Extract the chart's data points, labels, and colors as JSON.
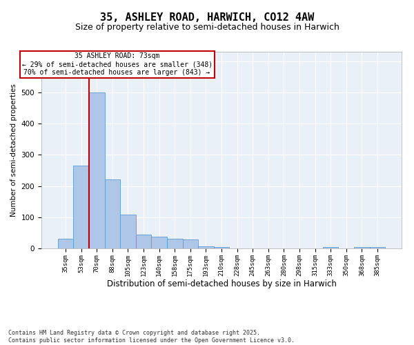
{
  "title": "35, ASHLEY ROAD, HARWICH, CO12 4AW",
  "subtitle": "Size of property relative to semi-detached houses in Harwich",
  "xlabel": "Distribution of semi-detached houses by size in Harwich",
  "ylabel": "Number of semi-detached properties",
  "categories": [
    "35sqm",
    "53sqm",
    "70sqm",
    "88sqm",
    "105sqm",
    "123sqm",
    "140sqm",
    "158sqm",
    "175sqm",
    "193sqm",
    "210sqm",
    "228sqm",
    "245sqm",
    "263sqm",
    "280sqm",
    "298sqm",
    "315sqm",
    "333sqm",
    "350sqm",
    "368sqm",
    "385sqm"
  ],
  "values": [
    30,
    265,
    500,
    220,
    108,
    45,
    38,
    30,
    28,
    6,
    5,
    0,
    0,
    0,
    0,
    0,
    0,
    4,
    0,
    4,
    4
  ],
  "bar_color": "#aec6e8",
  "bar_edge_color": "#5b9bd5",
  "vline_color": "#c00000",
  "annotation_text": "35 ASHLEY ROAD: 73sqm\n← 29% of semi-detached houses are smaller (348)\n70% of semi-detached houses are larger (843) →",
  "annotation_box_color": "#ffffff",
  "annotation_box_edge": "#c00000",
  "annotation_fontsize": 7,
  "title_fontsize": 11,
  "subtitle_fontsize": 9,
  "xlabel_fontsize": 8.5,
  "ylabel_fontsize": 7.5,
  "tick_fontsize": 6.5,
  "footer": "Contains HM Land Registry data © Crown copyright and database right 2025.\nContains public sector information licensed under the Open Government Licence v3.0.",
  "footer_fontsize": 6,
  "ylim": [
    0,
    630
  ],
  "background_color": "#eaf0f8",
  "grid_color": "#ffffff"
}
